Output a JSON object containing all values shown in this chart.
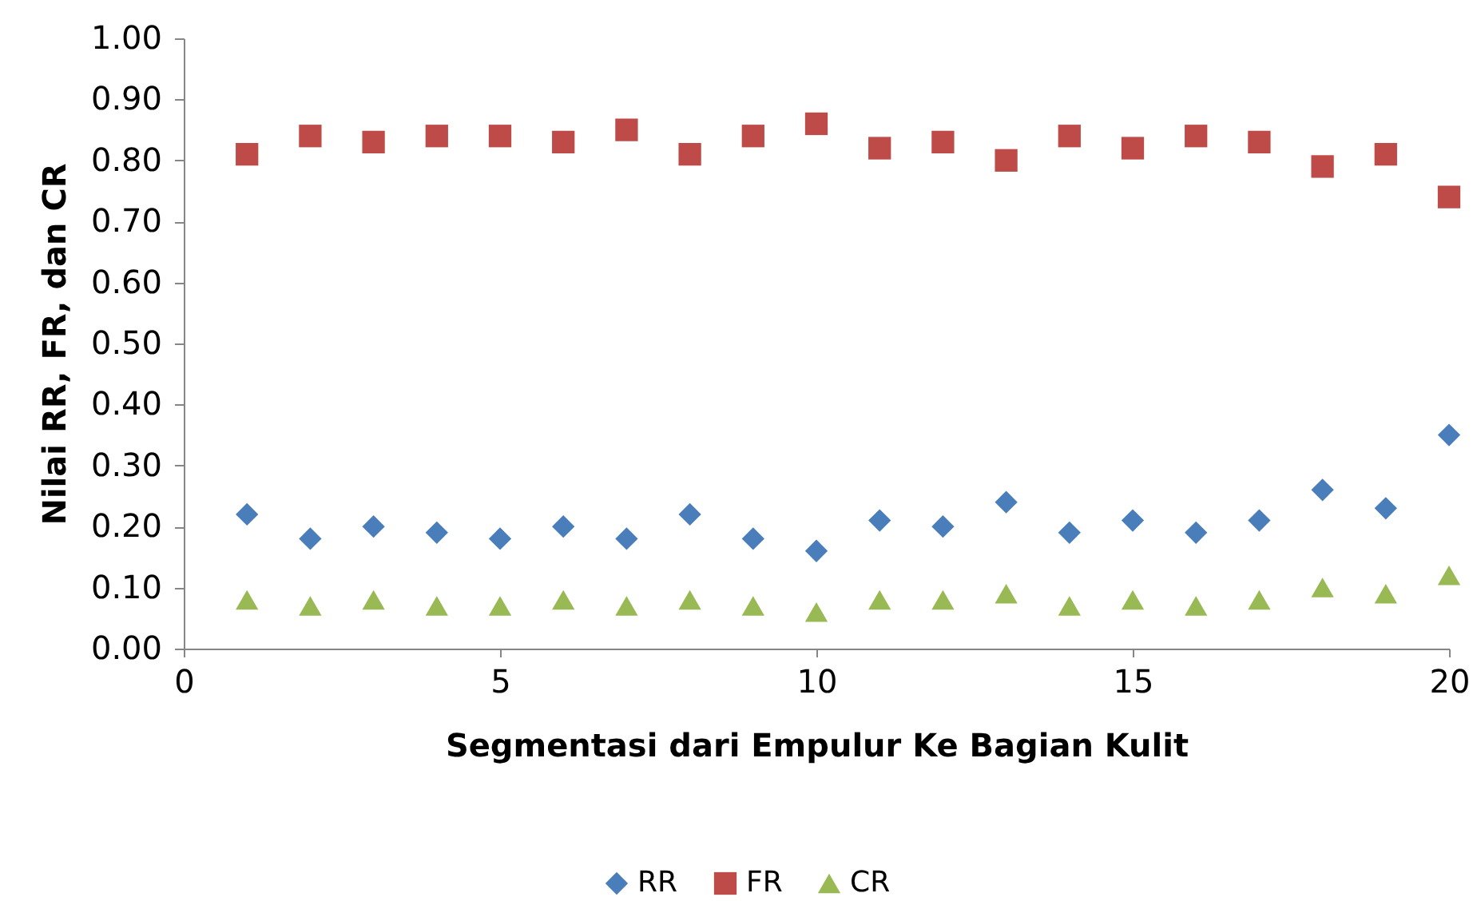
{
  "chart_data": {
    "type": "scatter",
    "xlabel": "Segmentasi dari Empulur Ke Bagian Kulit",
    "ylabel": "Nilai RR, FR, dan CR",
    "x": [
      1,
      2,
      3,
      4,
      5,
      6,
      7,
      8,
      9,
      10,
      11,
      12,
      13,
      14,
      15,
      16,
      17,
      18,
      19,
      20
    ],
    "series": [
      {
        "name": "RR",
        "color": "#4a7ebb",
        "marker": "diamond",
        "values": [
          0.22,
          0.18,
          0.2,
          0.19,
          0.18,
          0.2,
          0.18,
          0.22,
          0.18,
          0.16,
          0.21,
          0.2,
          0.24,
          0.19,
          0.21,
          0.19,
          0.21,
          0.26,
          0.23,
          0.35
        ]
      },
      {
        "name": "FR",
        "color": "#be4b48",
        "marker": "square",
        "values": [
          0.81,
          0.84,
          0.83,
          0.84,
          0.84,
          0.83,
          0.85,
          0.81,
          0.84,
          0.86,
          0.82,
          0.83,
          0.8,
          0.84,
          0.82,
          0.84,
          0.83,
          0.79,
          0.81,
          0.74
        ]
      },
      {
        "name": "CR",
        "color": "#98b954",
        "marker": "triangle",
        "values": [
          0.08,
          0.07,
          0.08,
          0.07,
          0.07,
          0.08,
          0.07,
          0.08,
          0.07,
          0.06,
          0.08,
          0.08,
          0.09,
          0.07,
          0.08,
          0.07,
          0.08,
          0.1,
          0.09,
          0.12
        ]
      }
    ],
    "xlim": [
      0,
      20
    ],
    "xticks": [
      0,
      5,
      10,
      15,
      20
    ],
    "ylim": [
      0,
      1
    ],
    "yticks": [
      {
        "value": 0,
        "label": "0.00"
      },
      {
        "value": 0.1,
        "label": "0.10"
      },
      {
        "value": 0.2,
        "label": "0.20"
      },
      {
        "value": 0.3,
        "label": "0.30"
      },
      {
        "value": 0.4,
        "label": "0.40"
      },
      {
        "value": 0.5,
        "label": "0.50"
      },
      {
        "value": 0.6,
        "label": "0.60"
      },
      {
        "value": 0.7,
        "label": "0.70"
      },
      {
        "value": 0.8,
        "label": "0.80"
      },
      {
        "value": 0.9,
        "label": "0.90"
      },
      {
        "value": 1,
        "label": "1.00"
      }
    ],
    "grid": false,
    "legend": "bottom"
  }
}
